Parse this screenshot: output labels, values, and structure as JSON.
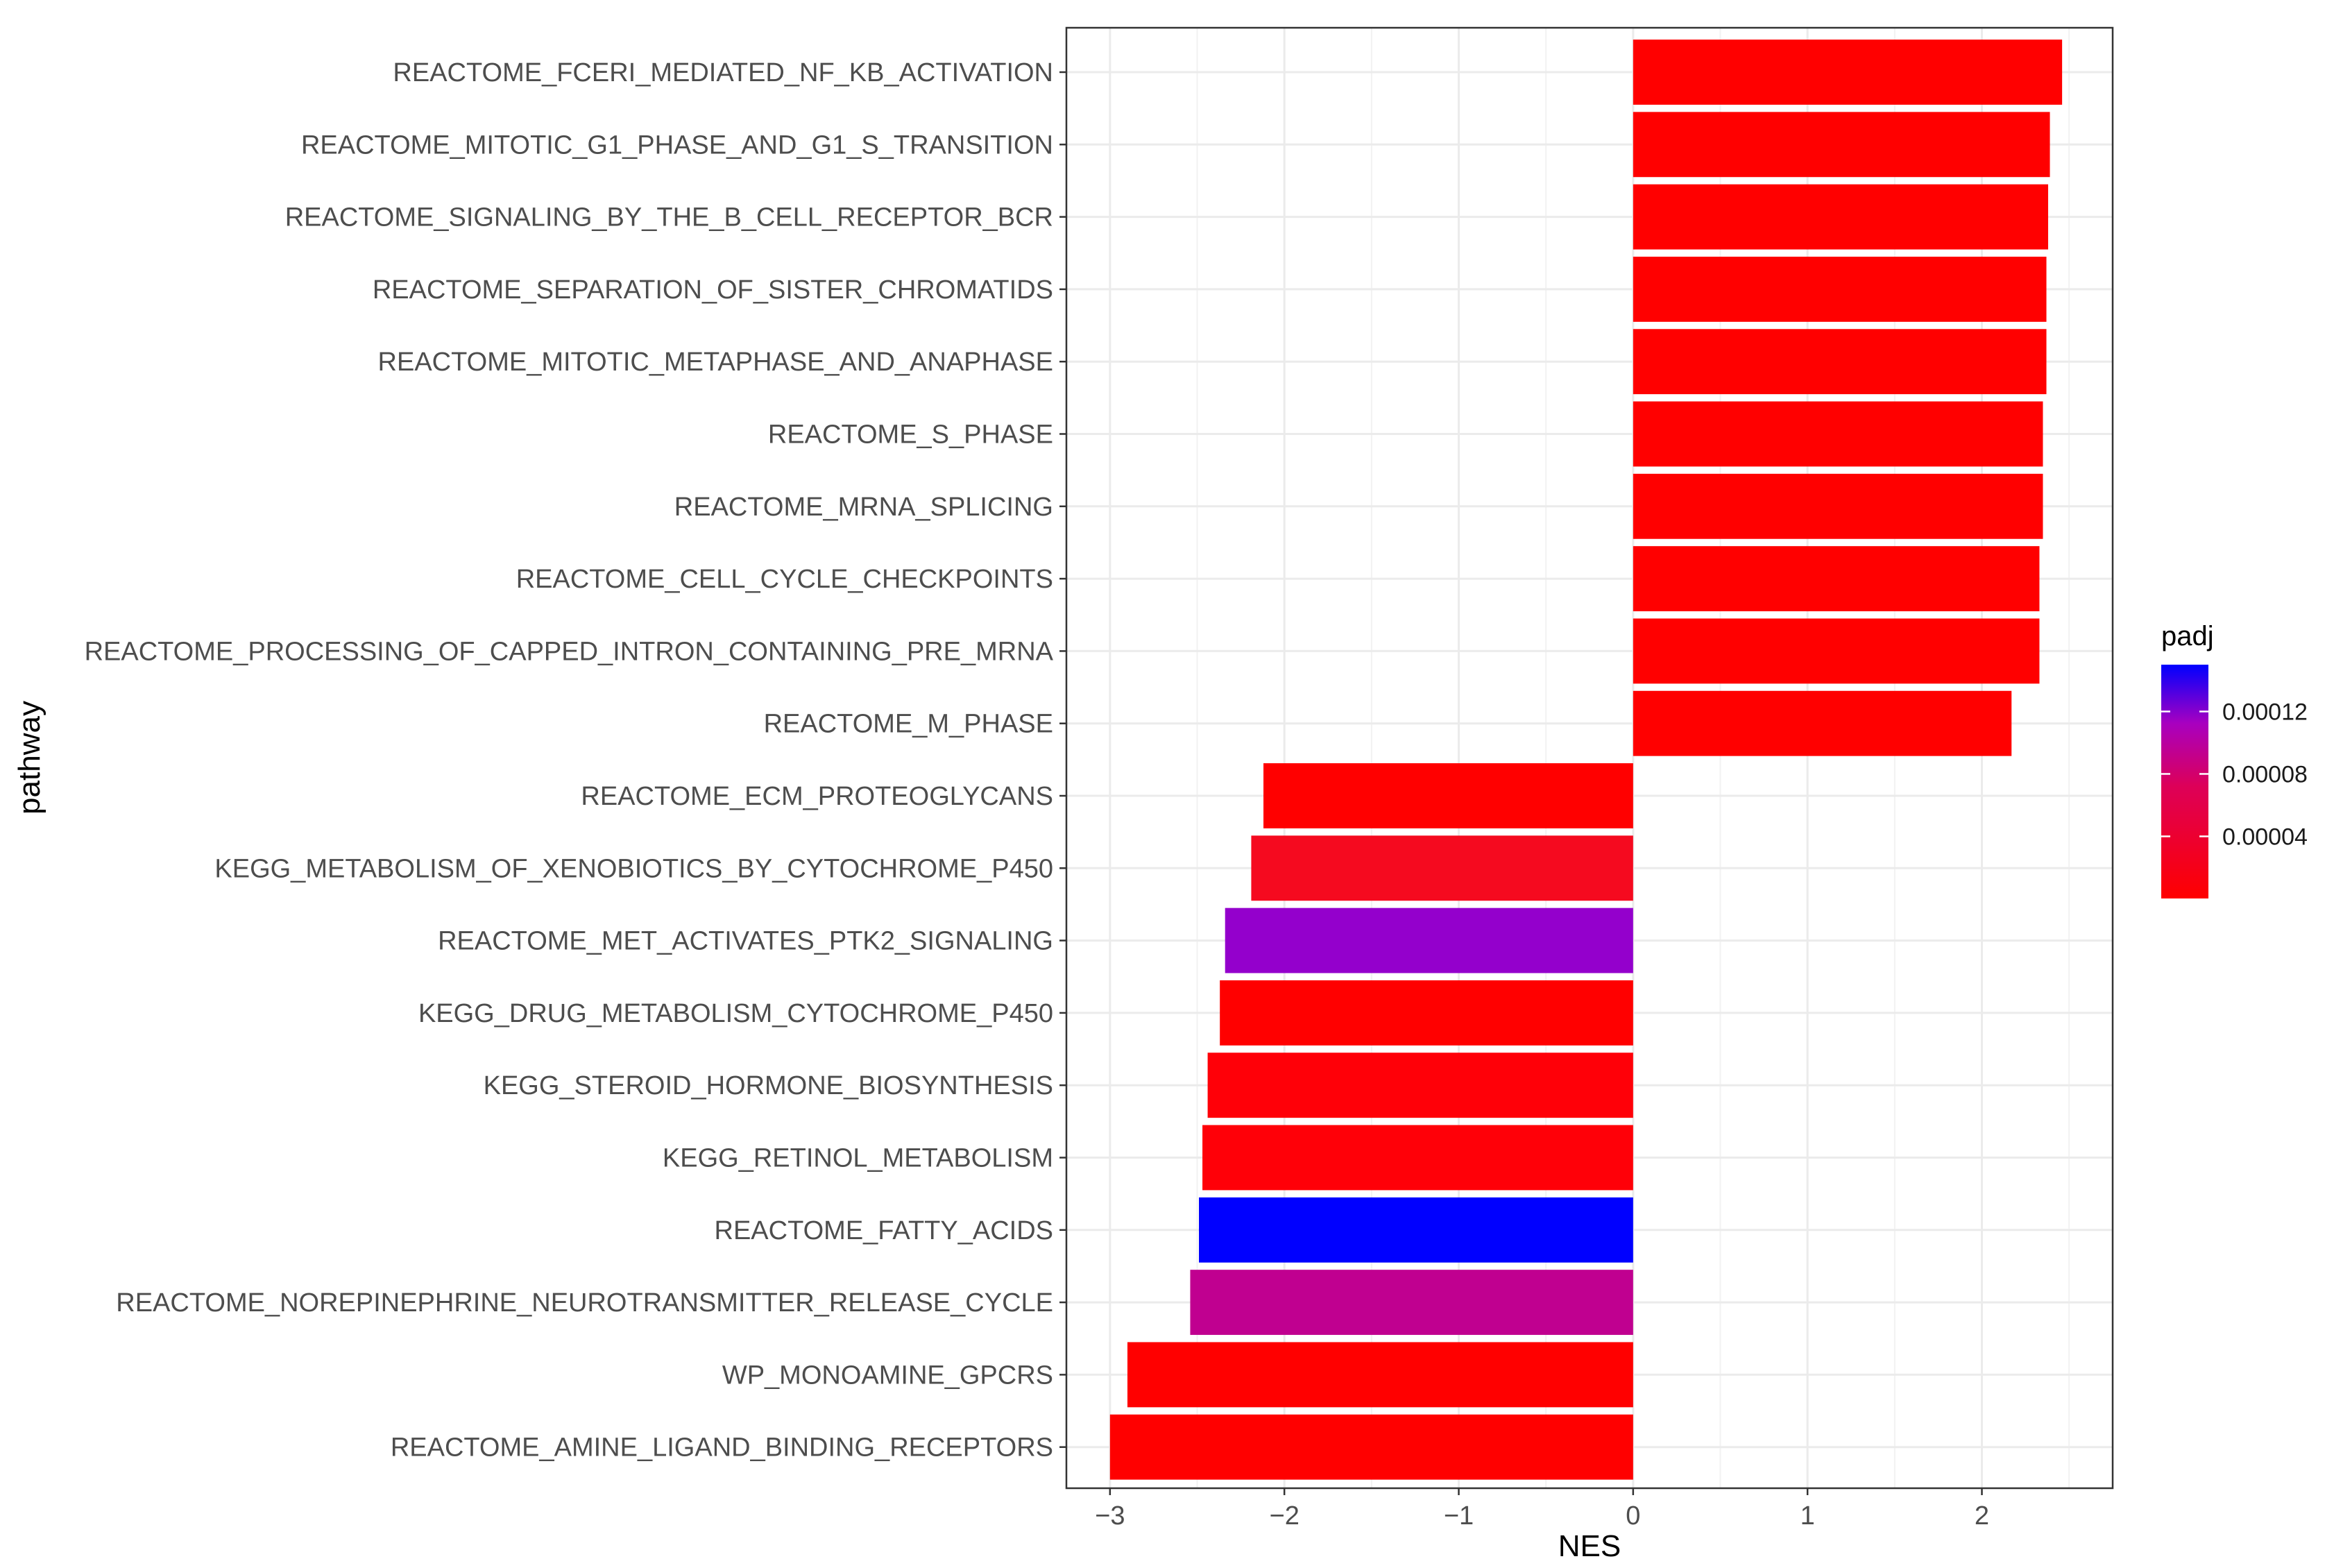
{
  "chart_data": {
    "type": "bar",
    "orientation": "horizontal",
    "title": "",
    "xlabel": "NES",
    "ylabel": "pathway",
    "xlim": [
      -3.25,
      2.75
    ],
    "x_ticks": [
      -3,
      -2,
      -1,
      0,
      1,
      2
    ],
    "x_tick_labels": [
      "−3",
      "−2",
      "−1",
      "0",
      "1",
      "2"
    ],
    "grid": true,
    "legend": {
      "title": "padj",
      "placement": "right",
      "range": [
        2e-07,
        0.00015
      ],
      "ticks": [
        0.00012,
        8e-05,
        4e-05
      ],
      "tick_labels": [
        "0.00012",
        "0.00008",
        "0.00004"
      ],
      "low_color": "#ff0000",
      "high_color": "#0000ff"
    },
    "bars": [
      {
        "pathway": "REACTOME_FCERI_MEDIATED_NF_KB_ACTIVATION",
        "nes": 2.46,
        "padj": 1e-06,
        "color": "#ff0000"
      },
      {
        "pathway": "REACTOME_MITOTIC_G1_PHASE_AND_G1_S_TRANSITION",
        "nes": 2.39,
        "padj": 1e-06,
        "color": "#ff0000"
      },
      {
        "pathway": "REACTOME_SIGNALING_BY_THE_B_CELL_RECEPTOR_BCR",
        "nes": 2.38,
        "padj": 1e-06,
        "color": "#ff0000"
      },
      {
        "pathway": "REACTOME_SEPARATION_OF_SISTER_CHROMATIDS",
        "nes": 2.37,
        "padj": 1e-06,
        "color": "#ff0000"
      },
      {
        "pathway": "REACTOME_MITOTIC_METAPHASE_AND_ANAPHASE",
        "nes": 2.37,
        "padj": 1e-06,
        "color": "#ff0000"
      },
      {
        "pathway": "REACTOME_S_PHASE",
        "nes": 2.35,
        "padj": 1e-06,
        "color": "#ff0000"
      },
      {
        "pathway": "REACTOME_MRNA_SPLICING",
        "nes": 2.35,
        "padj": 1e-06,
        "color": "#ff0000"
      },
      {
        "pathway": "REACTOME_CELL_CYCLE_CHECKPOINTS",
        "nes": 2.33,
        "padj": 1e-06,
        "color": "#ff0000"
      },
      {
        "pathway": "REACTOME_PROCESSING_OF_CAPPED_INTRON_CONTAINING_PRE_MRNA",
        "nes": 2.33,
        "padj": 1e-06,
        "color": "#ff0000"
      },
      {
        "pathway": "REACTOME_M_PHASE",
        "nes": 2.17,
        "padj": 1e-06,
        "color": "#ff0000"
      },
      {
        "pathway": "REACTOME_ECM_PROTEOGLYCANS",
        "nes": -2.12,
        "padj": 3e-06,
        "color": "#ff0000"
      },
      {
        "pathway": "KEGG_METABOLISM_OF_XENOBIOTICS_BY_CYTOCHROME_P450",
        "nes": -2.19,
        "padj": 1e-05,
        "color": "#f50a1f"
      },
      {
        "pathway": "REACTOME_MET_ACTIVATES_PTK2_SIGNALING",
        "nes": -2.34,
        "padj": 0.00012,
        "color": "#9400cc"
      },
      {
        "pathway": "KEGG_DRUG_METABOLISM_CYTOCHROME_P450",
        "nes": -2.37,
        "padj": 2e-06,
        "color": "#ff0000"
      },
      {
        "pathway": "KEGG_STEROID_HORMONE_BIOSYNTHESIS",
        "nes": -2.44,
        "padj": 3e-06,
        "color": "#ff0008"
      },
      {
        "pathway": "KEGG_RETINOL_METABOLISM",
        "nes": -2.47,
        "padj": 3e-06,
        "color": "#ff0008"
      },
      {
        "pathway": "REACTOME_FATTY_ACIDS",
        "nes": -2.49,
        "padj": 0.00015,
        "color": "#0000ff"
      },
      {
        "pathway": "REACTOME_NOREPINEPHRINE_NEUROTRANSMITTER_RELEASE_CYCLE",
        "nes": -2.54,
        "padj": 8e-05,
        "color": "#c00090"
      },
      {
        "pathway": "WP_MONOAMINE_GPCRS",
        "nes": -2.9,
        "padj": 1e-06,
        "color": "#ff0000"
      },
      {
        "pathway": "REACTOME_AMINE_LIGAND_BINDING_RECEPTORS",
        "nes": -3.0,
        "padj": 1e-06,
        "color": "#ff0000"
      }
    ]
  }
}
